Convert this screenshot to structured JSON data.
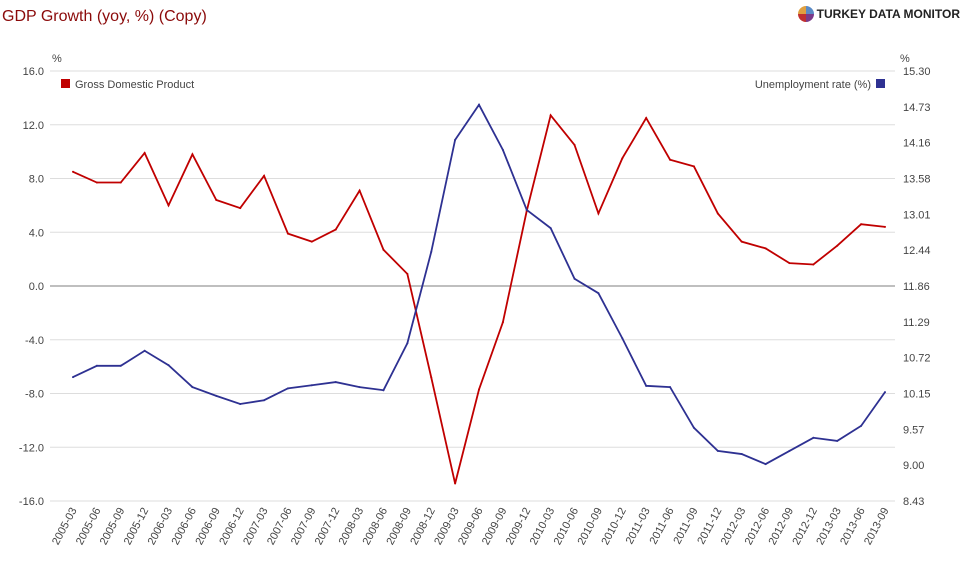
{
  "header": {
    "title": "GDP Growth (yoy, %) (Copy)",
    "brand": "TURKEY DATA MONITOR"
  },
  "chart_data": {
    "type": "line",
    "title": "GDP Growth (yoy, %) (Copy)",
    "categories": [
      "2005-03",
      "2005-06",
      "2005-09",
      "2005-12",
      "2006-03",
      "2006-06",
      "2006-09",
      "2006-12",
      "2007-03",
      "2007-06",
      "2007-09",
      "2007-12",
      "2008-03",
      "2008-06",
      "2008-09",
      "2008-12",
      "2009-03",
      "2009-06",
      "2009-09",
      "2009-12",
      "2010-03",
      "2010-06",
      "2010-09",
      "2010-12",
      "2011-03",
      "2011-06",
      "2011-09",
      "2011-12",
      "2012-03",
      "2012-06",
      "2012-09",
      "2012-12",
      "2013-03",
      "2013-06",
      "2013-09"
    ],
    "left_axis": {
      "unit": "%",
      "ylim": [
        -16,
        16
      ],
      "ticks": [
        "16.0",
        "12.0",
        "8.0",
        "4.0",
        "0.0",
        "-4.0",
        "-8.0",
        "-12.0",
        "-16.0"
      ]
    },
    "right_axis": {
      "unit": "%",
      "ylim": [
        8.43,
        15.3
      ],
      "ticks": [
        "15.30",
        "14.73",
        "14.16",
        "13.58",
        "13.01",
        "12.44",
        "11.86",
        "11.29",
        "10.72",
        "10.15",
        "9.57",
        "9.00",
        "8.43"
      ]
    },
    "grid": true,
    "series": [
      {
        "name": "Gross Domestic Product",
        "axis": "left",
        "color": "#c00000",
        "legend": "top-left",
        "values": [
          8.5,
          7.7,
          7.7,
          9.9,
          6.0,
          9.8,
          6.4,
          5.8,
          8.2,
          3.9,
          3.3,
          4.2,
          7.1,
          2.7,
          0.9,
          -6.8,
          -14.7,
          -7.7,
          -2.7,
          5.6,
          12.7,
          10.5,
          5.4,
          9.5,
          12.5,
          9.4,
          8.9,
          5.4,
          3.3,
          2.8,
          1.7,
          1.6,
          3.0,
          4.6,
          4.4
        ]
      },
      {
        "name": "Unemployment rate (%)",
        "axis": "right",
        "color": "#2e3192",
        "legend": "top-right",
        "values": [
          10.41,
          10.59,
          10.59,
          10.83,
          10.6,
          10.25,
          10.11,
          9.98,
          10.04,
          10.23,
          10.28,
          10.33,
          10.25,
          10.2,
          10.95,
          12.41,
          14.2,
          14.76,
          14.04,
          13.08,
          12.79,
          11.98,
          11.75,
          11.03,
          10.27,
          10.25,
          9.6,
          9.23,
          9.18,
          9.02,
          9.23,
          9.44,
          9.39,
          9.63,
          10.17
        ]
      }
    ]
  }
}
